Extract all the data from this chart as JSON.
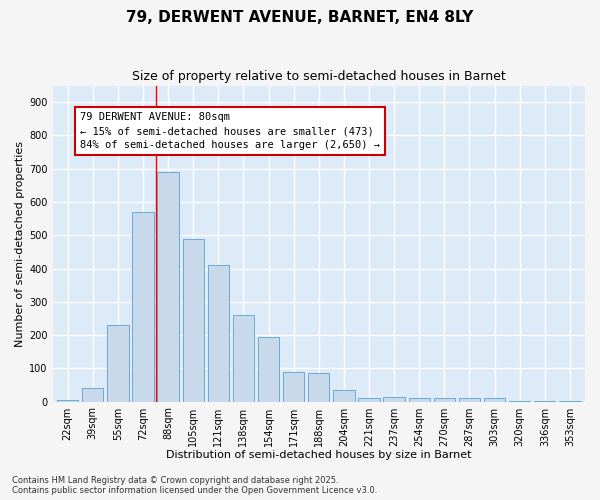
{
  "title": "79, DERWENT AVENUE, BARNET, EN4 8LY",
  "subtitle": "Size of property relative to semi-detached houses in Barnet",
  "xlabel": "Distribution of semi-detached houses by size in Barnet",
  "ylabel": "Number of semi-detached properties",
  "categories": [
    "22sqm",
    "39sqm",
    "55sqm",
    "72sqm",
    "88sqm",
    "105sqm",
    "121sqm",
    "138sqm",
    "154sqm",
    "171sqm",
    "188sqm",
    "204sqm",
    "221sqm",
    "237sqm",
    "254sqm",
    "270sqm",
    "287sqm",
    "303sqm",
    "320sqm",
    "336sqm",
    "353sqm"
  ],
  "values": [
    5,
    40,
    230,
    570,
    690,
    490,
    410,
    260,
    195,
    90,
    85,
    35,
    12,
    15,
    10,
    12,
    10,
    10,
    2,
    2,
    2
  ],
  "bar_color": "#c8d9eb",
  "bar_edge_color": "#6aaad4",
  "bg_color": "#ddeaf7",
  "grid_color": "#ffffff",
  "red_line_x": 3.5,
  "marker_label": "79 DERWENT AVENUE: 80sqm\n← 15% of semi-detached houses are smaller (473)\n84% of semi-detached houses are larger (2,650) →",
  "annotation_box_color": "#cc0000",
  "ylim": [
    0,
    950
  ],
  "yticks": [
    0,
    100,
    200,
    300,
    400,
    500,
    600,
    700,
    800,
    900
  ],
  "footer_line1": "Contains HM Land Registry data © Crown copyright and database right 2025.",
  "footer_line2": "Contains public sector information licensed under the Open Government Licence v3.0.",
  "title_fontsize": 11,
  "subtitle_fontsize": 9,
  "axis_label_fontsize": 8,
  "tick_fontsize": 7,
  "footer_fontsize": 6,
  "annotation_fontsize": 7.5,
  "fig_bg_color": "#f5f5f5"
}
